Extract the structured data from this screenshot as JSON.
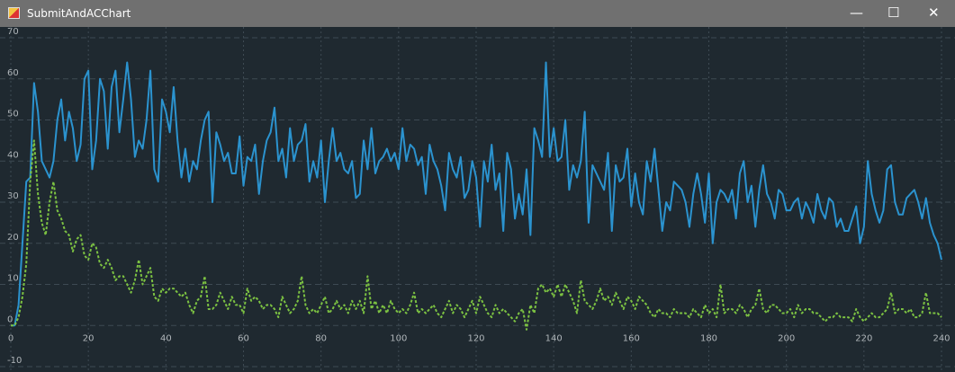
{
  "window": {
    "title": "SubmitAndACChart"
  },
  "chart_data": {
    "type": "line",
    "x": [
      0,
      1,
      2,
      3,
      4,
      5,
      6,
      7,
      8,
      9,
      10,
      11,
      12,
      13,
      14,
      15,
      16,
      17,
      18,
      19,
      20,
      21,
      22,
      23,
      24,
      25,
      26,
      27,
      28,
      29,
      30,
      31,
      32,
      33,
      34,
      35,
      36,
      37,
      38,
      39,
      40,
      41,
      42,
      43,
      44,
      45,
      46,
      47,
      48,
      49,
      50,
      51,
      52,
      53,
      54,
      55,
      56,
      57,
      58,
      59,
      60,
      61,
      62,
      63,
      64,
      65,
      66,
      67,
      68,
      69,
      70,
      71,
      72,
      73,
      74,
      75,
      76,
      77,
      78,
      79,
      80,
      81,
      82,
      83,
      84,
      85,
      86,
      87,
      88,
      89,
      90,
      91,
      92,
      93,
      94,
      95,
      96,
      97,
      98,
      99,
      100,
      101,
      102,
      103,
      104,
      105,
      106,
      107,
      108,
      109,
      110,
      111,
      112,
      113,
      114,
      115,
      116,
      117,
      118,
      119,
      120,
      121,
      122,
      123,
      124,
      125,
      126,
      127,
      128,
      129,
      130,
      131,
      132,
      133,
      134,
      135,
      136,
      137,
      138,
      139,
      140,
      141,
      142,
      143,
      144,
      145,
      146,
      147,
      148,
      149,
      150,
      151,
      152,
      153,
      154,
      155,
      156,
      157,
      158,
      159,
      160,
      161,
      162,
      163,
      164,
      165,
      166,
      167,
      168,
      169,
      170,
      171,
      172,
      173,
      174,
      175,
      176,
      177,
      178,
      179,
      180,
      181,
      182,
      183,
      184,
      185,
      186,
      187,
      188,
      189,
      190,
      191,
      192,
      193,
      194,
      195,
      196,
      197,
      198,
      199,
      200,
      201,
      202,
      203,
      204,
      205,
      206,
      207,
      208,
      209,
      210,
      211,
      212,
      213,
      214,
      215,
      216,
      217,
      218,
      219,
      220,
      221,
      222,
      223,
      224,
      225,
      226,
      227,
      228,
      229,
      230,
      231,
      232,
      233,
      234,
      235,
      236,
      237,
      238,
      239,
      240
    ],
    "series": [
      {
        "color": "#2b93cf",
        "dash": false,
        "values": [
          0,
          0,
          5,
          20,
          35,
          36,
          59,
          52,
          40,
          38,
          36,
          40,
          50,
          55,
          45,
          52,
          48,
          40,
          44,
          60,
          62,
          38,
          45,
          60,
          57,
          43,
          58,
          62,
          47,
          55,
          64,
          55,
          41,
          45,
          43,
          50,
          62,
          38,
          35,
          55,
          52,
          47,
          58,
          45,
          36,
          43,
          35,
          40,
          38,
          45,
          50,
          52,
          30,
          47,
          44,
          40,
          42,
          37,
          37,
          46,
          34,
          41,
          40,
          44,
          32,
          40,
          45,
          47,
          53,
          40,
          43,
          36,
          48,
          40,
          44,
          45,
          49,
          35,
          40,
          36,
          45,
          30,
          40,
          48,
          40,
          42,
          38,
          37,
          40,
          31,
          32,
          45,
          38,
          48,
          37,
          40,
          41,
          43,
          40,
          42,
          38,
          48,
          40,
          44,
          43,
          39,
          41,
          32,
          44,
          40,
          38,
          34,
          28,
          42,
          38,
          36,
          41,
          31,
          33,
          40,
          36,
          24,
          40,
          35,
          44,
          33,
          37,
          23,
          42,
          38,
          26,
          32,
          27,
          38,
          22,
          48,
          45,
          41,
          64,
          41,
          48,
          40,
          41,
          50,
          33,
          39,
          36,
          40,
          52,
          25,
          39,
          37,
          35,
          33,
          42,
          23,
          39,
          35,
          36,
          43,
          29,
          37,
          30,
          27,
          40,
          35,
          43,
          33,
          23,
          30,
          28,
          35,
          34,
          33,
          30,
          24,
          32,
          37,
          32,
          25,
          37,
          20,
          30,
          33,
          32,
          30,
          33,
          26,
          37,
          40,
          30,
          34,
          24,
          33,
          39,
          32,
          30,
          26,
          33,
          32,
          28,
          28,
          30,
          31,
          26,
          30,
          28,
          25,
          32,
          28,
          26,
          31,
          30,
          24,
          26,
          23,
          23,
          26,
          29,
          20,
          24,
          40,
          32,
          28,
          25,
          28,
          38,
          39,
          30,
          27,
          27,
          31,
          32,
          33,
          30,
          26,
          31,
          25,
          22,
          20,
          16
        ]
      },
      {
        "color": "#7cc242",
        "dash": true,
        "values": [
          0,
          0,
          2,
          7,
          15,
          35,
          45,
          32,
          25,
          22,
          30,
          35,
          28,
          26,
          23,
          22,
          18,
          21,
          22,
          17,
          16,
          20,
          19,
          15,
          14,
          16,
          14,
          11,
          12,
          12,
          10,
          8,
          11,
          16,
          10,
          12,
          14,
          7,
          6,
          9,
          8,
          9,
          9,
          8,
          7,
          8,
          5,
          3,
          6,
          7,
          12,
          4,
          4,
          5,
          8,
          6,
          4,
          7,
          5,
          5,
          3,
          9,
          6,
          7,
          6,
          4,
          5,
          5,
          4,
          2,
          7,
          5,
          3,
          4,
          6,
          12,
          5,
          3,
          4,
          3,
          5,
          7,
          3,
          4,
          6,
          4,
          5,
          3,
          6,
          4,
          6,
          3,
          12,
          4,
          6,
          3,
          5,
          3,
          6,
          4,
          3,
          4,
          3,
          5,
          8,
          3,
          4,
          3,
          4,
          5,
          3,
          2,
          4,
          6,
          3,
          5,
          4,
          2,
          4,
          6,
          3,
          7,
          5,
          3,
          2,
          5,
          3,
          4,
          3,
          2,
          1,
          3,
          4,
          -1,
          5,
          3,
          9,
          10,
          8,
          9,
          7,
          10,
          7,
          10,
          8,
          6,
          3,
          11,
          6,
          5,
          4,
          6,
          9,
          6,
          7,
          5,
          8,
          6,
          4,
          7,
          6,
          4,
          7,
          6,
          5,
          3,
          2,
          4,
          3,
          3,
          2,
          4,
          3,
          3,
          3,
          2,
          4,
          3,
          2,
          5,
          3,
          4,
          2,
          10,
          3,
          4,
          4,
          3,
          5,
          4,
          2,
          4,
          5,
          9,
          4,
          3,
          5,
          5,
          4,
          3,
          3,
          4,
          2,
          5,
          3,
          4,
          4,
          3,
          3,
          2,
          1,
          2,
          2,
          3,
          2,
          2,
          2,
          1,
          4,
          2,
          1,
          2,
          3,
          2,
          2,
          3,
          4,
          8,
          3,
          4,
          4,
          3,
          4,
          2,
          2,
          3,
          8,
          3,
          3,
          3,
          2
        ]
      }
    ],
    "xlim": [
      0,
      240
    ],
    "xticks": [
      0,
      20,
      40,
      60,
      80,
      100,
      120,
      140,
      160,
      180,
      200,
      220,
      240
    ],
    "ylim": [
      -10,
      70
    ],
    "yticks": [
      -10,
      0,
      10,
      20,
      30,
      40,
      50,
      60,
      70
    ],
    "grid": true
  }
}
